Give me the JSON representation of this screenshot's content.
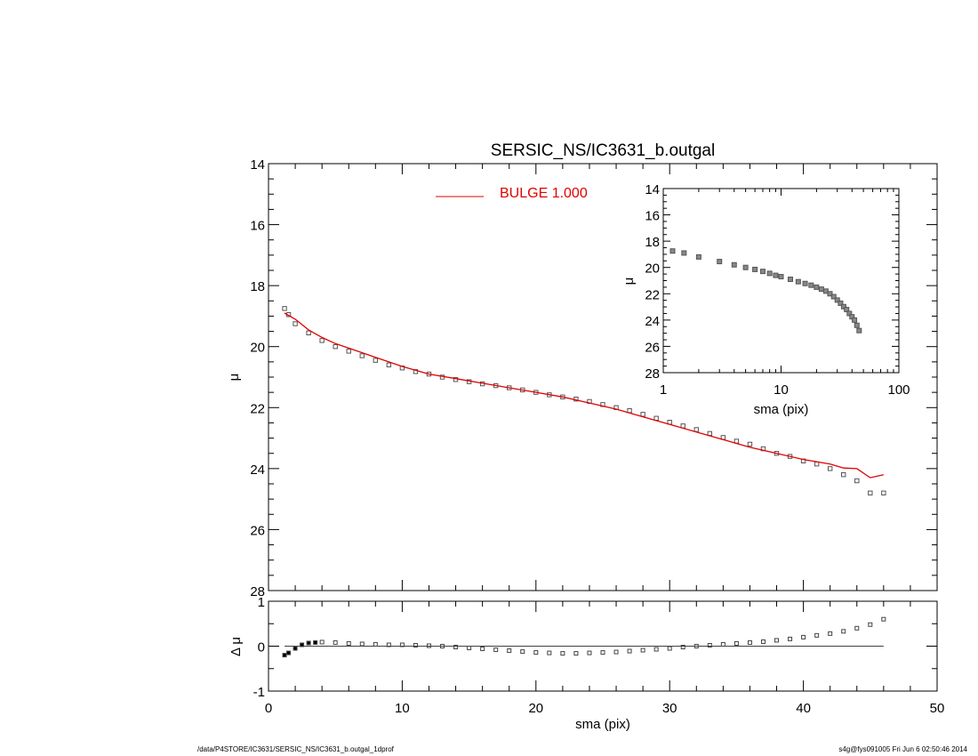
{
  "chart_data": [
    {
      "id": "main",
      "type": "scatter",
      "title": "SERSIC_NS/IC3631_b.outgal",
      "xlabel": "",
      "ylabel": "μ",
      "xlim": [
        0,
        50
      ],
      "ylim": [
        28,
        14
      ],
      "xticks": [
        "0",
        "10",
        "20",
        "30",
        "40",
        "50"
      ],
      "yticks": [
        "14",
        "16",
        "18",
        "20",
        "22",
        "24",
        "26",
        "28"
      ],
      "legend": {
        "position": "top",
        "entries": [
          {
            "label": "BULGE  1.000",
            "color": "#e00000"
          }
        ]
      },
      "series": [
        {
          "marker": "square",
          "color": "#555555",
          "x": [
            1.2,
            1.5,
            2,
            3,
            4,
            5,
            6,
            7,
            8,
            9,
            10,
            11,
            12,
            13,
            14,
            15,
            16,
            17,
            18,
            19,
            20,
            21,
            22,
            23,
            24,
            25,
            26,
            27,
            28,
            29,
            30,
            31,
            32,
            33,
            34,
            35,
            36,
            37,
            38,
            39,
            40,
            41,
            42,
            43,
            44,
            45,
            46
          ],
          "y": [
            18.75,
            18.95,
            19.25,
            19.55,
            19.8,
            20.0,
            20.15,
            20.3,
            20.45,
            20.6,
            20.7,
            20.82,
            20.9,
            21.0,
            21.08,
            21.15,
            21.22,
            21.28,
            21.35,
            21.42,
            21.5,
            21.58,
            21.65,
            21.72,
            21.8,
            21.9,
            22.0,
            22.1,
            22.22,
            22.35,
            22.48,
            22.6,
            22.72,
            22.85,
            22.98,
            23.1,
            23.2,
            23.35,
            23.5,
            23.6,
            23.75,
            23.85,
            24.0,
            24.2,
            24.4,
            24.8,
            24.8
          ]
        },
        {
          "name": "BULGE  1.000",
          "type": "line",
          "color": "#e00000",
          "x": [
            1.2,
            2,
            3,
            4,
            5,
            6,
            8,
            10,
            12,
            14,
            16,
            18,
            20,
            22,
            24,
            26,
            28,
            30,
            32,
            34,
            36,
            38,
            40,
            42,
            43,
            44,
            45,
            46
          ],
          "y": [
            18.9,
            19.1,
            19.45,
            19.7,
            19.9,
            20.05,
            20.35,
            20.65,
            20.9,
            21.05,
            21.2,
            21.35,
            21.5,
            21.65,
            21.85,
            22.05,
            22.3,
            22.55,
            22.8,
            23.05,
            23.3,
            23.5,
            23.7,
            23.85,
            23.98,
            24.0,
            24.3,
            24.2
          ]
        }
      ]
    },
    {
      "id": "residual",
      "type": "scatter",
      "xlabel": "sma (pix)",
      "ylabel": "Δ μ",
      "xlim": [
        0,
        50
      ],
      "ylim": [
        -1,
        1
      ],
      "xticks": [
        "0",
        "10",
        "20",
        "30",
        "40",
        "50"
      ],
      "yticks": [
        "1",
        "0",
        "-1"
      ],
      "zero_line": true,
      "series": [
        {
          "marker": "square",
          "color": "#444444",
          "x": [
            1.2,
            1.5,
            2,
            2.5,
            3,
            3.5,
            4,
            5,
            6,
            7,
            8,
            9,
            10,
            11,
            12,
            13,
            14,
            15,
            16,
            17,
            18,
            19,
            20,
            21,
            22,
            23,
            24,
            25,
            26,
            27,
            28,
            29,
            30,
            31,
            32,
            33,
            34,
            35,
            36,
            37,
            38,
            39,
            40,
            41,
            42,
            43,
            44,
            45,
            46
          ],
          "y": [
            -0.2,
            -0.15,
            -0.05,
            0.03,
            0.07,
            0.08,
            0.09,
            0.08,
            0.06,
            0.05,
            0.04,
            0.03,
            0.03,
            0.02,
            0.01,
            0.0,
            -0.02,
            -0.04,
            -0.06,
            -0.08,
            -0.1,
            -0.12,
            -0.14,
            -0.15,
            -0.16,
            -0.16,
            -0.15,
            -0.14,
            -0.13,
            -0.11,
            -0.09,
            -0.07,
            -0.05,
            -0.02,
            0.0,
            0.02,
            0.04,
            0.06,
            0.08,
            0.1,
            0.13,
            0.16,
            0.2,
            0.24,
            0.28,
            0.33,
            0.4,
            0.48,
            0.6
          ]
        }
      ]
    },
    {
      "id": "inset",
      "type": "scatter",
      "xlabel": "sma (pix)",
      "ylabel": "μ",
      "xscale": "log",
      "xlim": [
        1,
        100
      ],
      "ylim": [
        28,
        14
      ],
      "xticks": [
        "1",
        "10",
        "100"
      ],
      "yticks": [
        "14",
        "16",
        "18",
        "20",
        "22",
        "24",
        "26",
        "28"
      ],
      "series": [
        {
          "marker": "square",
          "color": "#555555",
          "x": [
            1.2,
            1.5,
            2,
            3,
            4,
            5,
            6,
            7,
            8,
            9,
            10,
            12,
            14,
            16,
            18,
            20,
            22,
            24,
            26,
            28,
            30,
            32,
            34,
            36,
            38,
            40,
            42,
            44,
            46
          ],
          "y": [
            18.75,
            18.9,
            19.2,
            19.55,
            19.8,
            20.0,
            20.15,
            20.3,
            20.45,
            20.6,
            20.7,
            20.9,
            21.08,
            21.22,
            21.35,
            21.5,
            21.65,
            21.8,
            22.0,
            22.22,
            22.48,
            22.72,
            22.98,
            23.2,
            23.5,
            23.75,
            24.0,
            24.4,
            24.8
          ]
        }
      ]
    }
  ],
  "footer": {
    "left": "/data/P4STORE/IC3631/SERSIC_NS/IC3631_b.outgal_1dprof",
    "right": "s4g@fys091005  Fri Jun  6 02:50:46 2014"
  }
}
